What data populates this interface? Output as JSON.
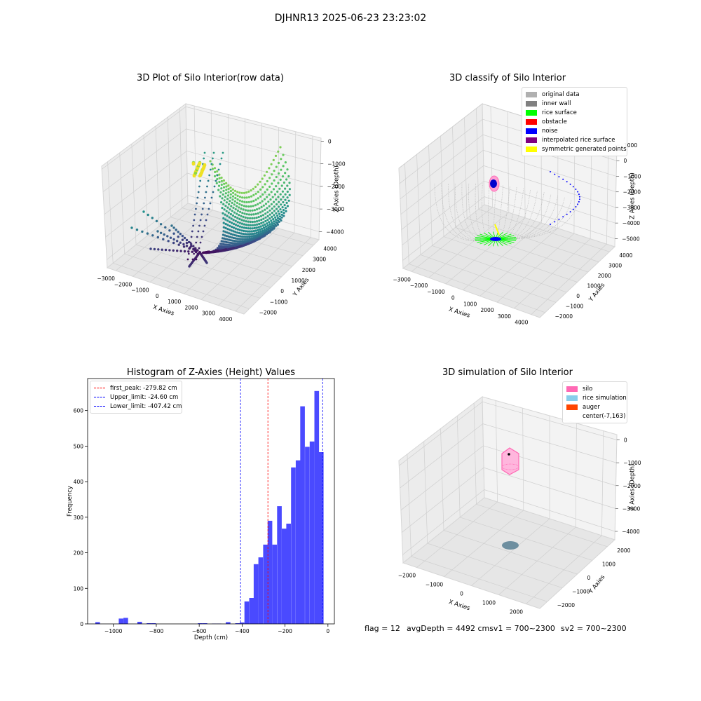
{
  "figure": {
    "suptitle": "DJHNR13 2025-06-23 23:23:02"
  },
  "chart_data": [
    {
      "type": "scatter3d",
      "title": "3D Plot of Silo Interior(row data)",
      "xlabel": "X Axies",
      "ylabel": "Y Axies",
      "zlabel": "Z Axies (Depth)",
      "x_ticks": [
        "−3000",
        "−2000",
        "−1000",
        "0",
        "1000",
        "2000",
        "3000",
        "4000"
      ],
      "y_ticks": [
        "−2000",
        "−1000",
        "0",
        "1000",
        "2000",
        "3000",
        "4000"
      ],
      "z_ticks": [
        "0",
        "−1000",
        "−2000",
        "−3000",
        "−4000"
      ],
      "colormap": "viridis"
    },
    {
      "type": "scatter3d",
      "title": "3D classify of Silo Interior",
      "xlabel": "X Axies",
      "ylabel": "Y Axies",
      "zlabel": "Z Axies (Depth)",
      "x_ticks": [
        "−3000",
        "−2000",
        "−1000",
        "0",
        "1000",
        "2000",
        "3000",
        "4000"
      ],
      "y_ticks": [
        "−2000",
        "−1000",
        "0",
        "1000",
        "2000",
        "3000",
        "4000"
      ],
      "z_ticks": [
        "1000",
        "0",
        "−1000",
        "−2000",
        "−3000",
        "−4000",
        "−5000"
      ],
      "legend": [
        {
          "label": "original data",
          "color": "#b0b0b0"
        },
        {
          "label": "inner wall",
          "color": "#808080"
        },
        {
          "label": "rice surface",
          "color": "#00ff00"
        },
        {
          "label": "obstacle",
          "color": "#ff0000"
        },
        {
          "label": "noise",
          "color": "#0000ff"
        },
        {
          "label": "interpolated rice surface",
          "color": "#800080"
        },
        {
          "label": "symmetric generated points",
          "color": "#ffff00"
        }
      ]
    },
    {
      "type": "bar",
      "title": "Histogram of Z-Axies (Height) Values",
      "xlabel": "Depth (cm)",
      "ylabel": "Frequency",
      "xlim": [
        -1120,
        30
      ],
      "ylim": [
        0,
        690
      ],
      "x_ticks": [
        {
          "v": -1000,
          "label": "−1000"
        },
        {
          "v": -800,
          "label": "−800"
        },
        {
          "v": -600,
          "label": "−600"
        },
        {
          "v": -400,
          "label": "−400"
        },
        {
          "v": -200,
          "label": "−200"
        },
        {
          "v": 0,
          "label": "0"
        }
      ],
      "y_ticks": [
        0,
        100,
        200,
        300,
        400,
        500,
        600
      ],
      "bar_color": "#4a4aff",
      "bin_width": 21.7,
      "bins": [
        [
          -1084,
          5
        ],
        [
          -1062,
          0
        ],
        [
          -1040,
          0
        ],
        [
          -1018,
          0
        ],
        [
          -997,
          0
        ],
        [
          -975,
          15
        ],
        [
          -953,
          17
        ],
        [
          -931,
          0
        ],
        [
          -910,
          0
        ],
        [
          -888,
          6
        ],
        [
          -866,
          0
        ],
        [
          -845,
          2
        ],
        [
          -823,
          2
        ],
        [
          -801,
          0
        ],
        [
          -606,
          2
        ],
        [
          -584,
          2
        ],
        [
          -541,
          1
        ],
        [
          -519,
          1
        ],
        [
          -476,
          5
        ],
        [
          -432,
          2
        ],
        [
          -411,
          4
        ],
        [
          -389,
          63
        ],
        [
          -367,
          73
        ],
        [
          -346,
          168
        ],
        [
          -324,
          187
        ],
        [
          -302,
          223
        ],
        [
          -281,
          290
        ],
        [
          -259,
          223
        ],
        [
          -237,
          331
        ],
        [
          -215,
          268
        ],
        [
          -194,
          282
        ],
        [
          -172,
          440
        ],
        [
          -150,
          460
        ],
        [
          -129,
          612
        ],
        [
          -107,
          498
        ],
        [
          -85,
          513
        ],
        [
          -63,
          655
        ],
        [
          -42,
          483
        ]
      ],
      "vlines": [
        {
          "label": "first_peak: -279.82 cm",
          "value": -279.82,
          "color": "#ff0000"
        },
        {
          "label": "Upper_limit: -24.60 cm",
          "value": -24.6,
          "color": "#0000ff"
        },
        {
          "label": "Lower_limit: -407.42 cm",
          "value": -407.42,
          "color": "#0000ff"
        }
      ]
    },
    {
      "type": "scatter3d",
      "title": "3D simulation of Silo Interior",
      "xlabel": "X Axies",
      "ylabel": "Y Axies",
      "zlabel": "Z Axies (Depth)",
      "x_ticks": [
        "−2000",
        "−1000",
        "0",
        "1000",
        "2000"
      ],
      "y_ticks": [
        "−2000",
        "−1000",
        "0",
        "1000",
        "2000"
      ],
      "z_ticks": [
        "0",
        "−1000",
        "−2000",
        "−3000",
        "−4000"
      ],
      "legend": [
        {
          "label": "silo",
          "color": "#ff69b4"
        },
        {
          "label": "rice simulation",
          "color": "#87ceeb"
        },
        {
          "label": "auger",
          "color": "#ff4500"
        },
        {
          "label": "center(-7,163)",
          "color": "#ffffff"
        }
      ]
    }
  ],
  "footer": {
    "flag": "flag = 12",
    "avg": "avgDepth = 4492 cmsv1 = 700~2300",
    "sv2": "sv2 = 700~2300"
  }
}
